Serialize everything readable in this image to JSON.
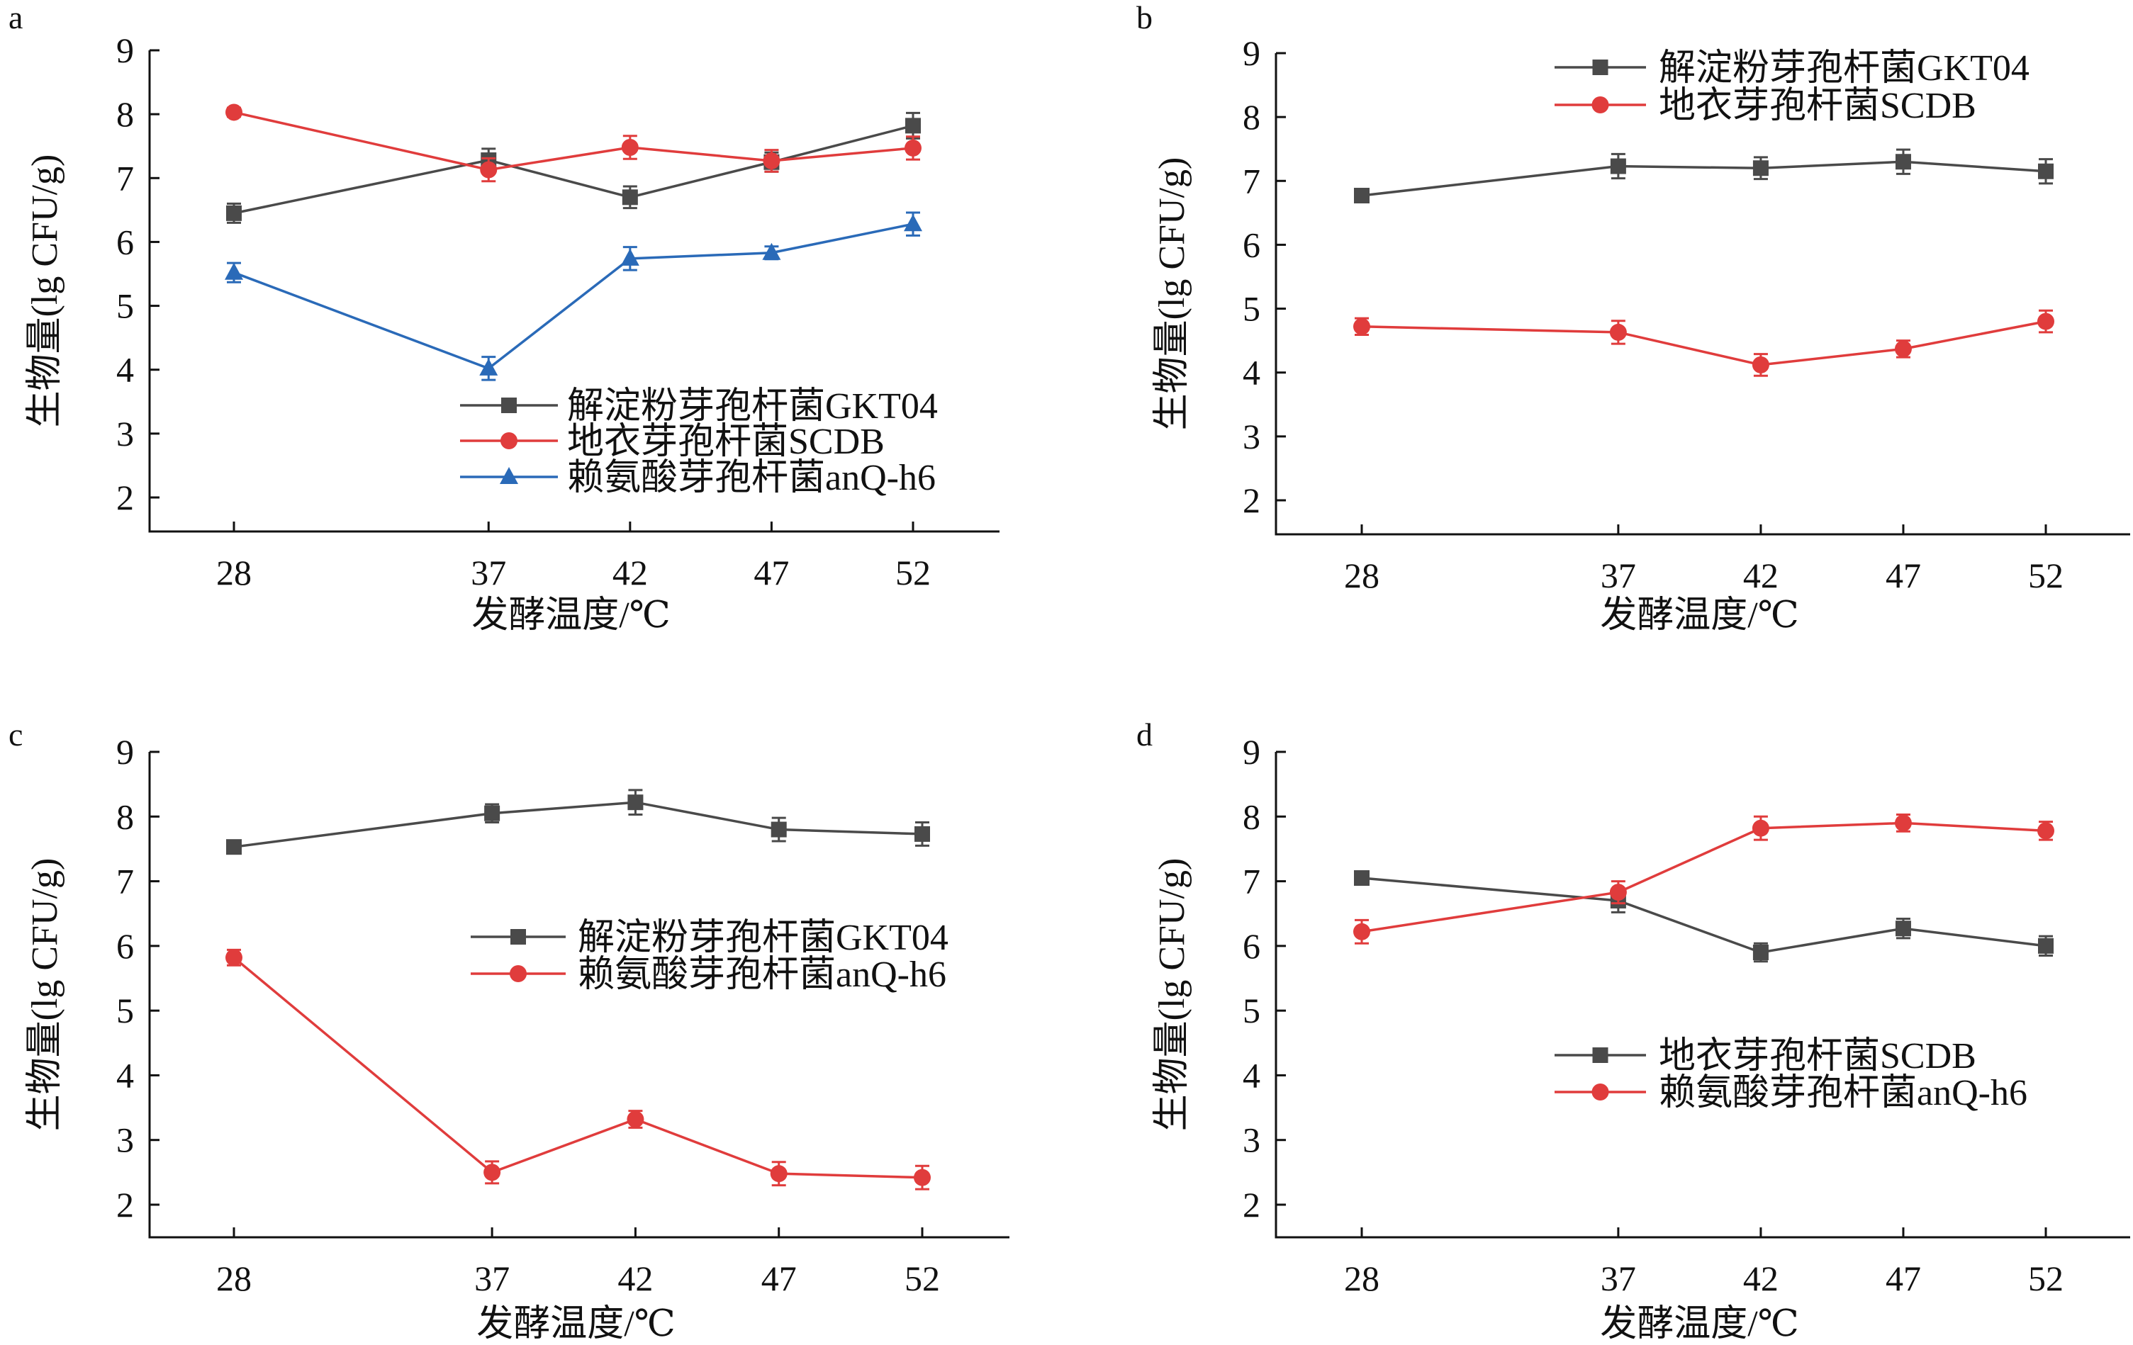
{
  "colors": {
    "gray": "#4a4a4a",
    "red": "#e03c3c",
    "blue": "#2a6ab8",
    "axis": "#111111"
  },
  "chart_data": [
    {
      "panel": "a",
      "type": "line",
      "xlabel": "发酵温度/℃",
      "ylabel": "生物量(lg CFU/g)",
      "x": [
        28,
        37,
        42,
        47,
        52
      ],
      "xlim": [
        25,
        55
      ],
      "ylim": [
        1.5,
        9
      ],
      "yticks": [
        2,
        3,
        4,
        5,
        6,
        7,
        8,
        9
      ],
      "grid": false,
      "legend": "bottom-right",
      "series": [
        {
          "name": "解淀粉芽孢杆菌GKT04",
          "color": "gray",
          "marker": "square",
          "values": [
            6.45,
            7.28,
            6.7,
            7.25,
            7.82
          ],
          "errors": [
            0.15,
            0.18,
            0.17,
            0.15,
            0.2
          ]
        },
        {
          "name": "地衣芽孢杆菌SCDB",
          "color": "red",
          "marker": "circle",
          "values": [
            8.03,
            7.13,
            7.48,
            7.27,
            7.47
          ],
          "errors": [
            0.07,
            0.18,
            0.18,
            0.17,
            0.18
          ]
        },
        {
          "name": "赖氨酸芽孢杆菌anQ-h6",
          "color": "blue",
          "marker": "triangle",
          "values": [
            5.52,
            4.02,
            5.74,
            5.83,
            6.28
          ],
          "errors": [
            0.15,
            0.18,
            0.18,
            0.1,
            0.18
          ]
        }
      ]
    },
    {
      "panel": "b",
      "type": "line",
      "xlabel": "发酵温度/℃",
      "ylabel": "生物量(lg CFU/g)",
      "x": [
        28,
        37,
        42,
        47,
        52
      ],
      "xlim": [
        25,
        55
      ],
      "ylim": [
        1.5,
        9
      ],
      "yticks": [
        2,
        3,
        4,
        5,
        6,
        7,
        8,
        9
      ],
      "grid": false,
      "legend": "top-right",
      "series": [
        {
          "name": "解淀粉芽孢杆菌GKT04",
          "color": "gray",
          "marker": "square",
          "values": [
            6.77,
            7.23,
            7.2,
            7.3,
            7.15
          ],
          "errors": [
            0.1,
            0.19,
            0.17,
            0.19,
            0.19
          ]
        },
        {
          "name": "地衣芽孢杆菌SCDB",
          "color": "red",
          "marker": "circle",
          "values": [
            4.72,
            4.63,
            4.12,
            4.37,
            4.8
          ],
          "errors": [
            0.13,
            0.18,
            0.17,
            0.13,
            0.17
          ]
        }
      ]
    },
    {
      "panel": "c",
      "type": "line",
      "xlabel": "发酵温度/℃",
      "ylabel": "生物量(lg CFU/g)",
      "x": [
        28,
        37,
        42,
        47,
        52
      ],
      "xlim": [
        25,
        55
      ],
      "ylim": [
        1.5,
        9
      ],
      "yticks": [
        2,
        3,
        4,
        5,
        6,
        7,
        8,
        9
      ],
      "grid": false,
      "legend": "center-right",
      "series": [
        {
          "name": "解淀粉芽孢杆菌GKT04",
          "color": "gray",
          "marker": "square",
          "values": [
            7.53,
            8.05,
            8.22,
            7.8,
            7.73
          ],
          "errors": [
            0.1,
            0.14,
            0.19,
            0.18,
            0.18
          ]
        },
        {
          "name": "赖氨酸芽孢杆菌anQ-h6",
          "color": "red",
          "marker": "circle",
          "values": [
            5.82,
            2.5,
            3.32,
            2.48,
            2.42
          ],
          "errors": [
            0.12,
            0.17,
            0.13,
            0.18,
            0.18
          ]
        }
      ]
    },
    {
      "panel": "d",
      "type": "line",
      "xlabel": "发酵温度/℃",
      "ylabel": "生物量(lg CFU/g)",
      "x": [
        28,
        37,
        42,
        47,
        52
      ],
      "xlim": [
        25,
        55
      ],
      "ylim": [
        1.5,
        9
      ],
      "yticks": [
        2,
        3,
        4,
        5,
        6,
        7,
        8,
        9
      ],
      "grid": false,
      "legend": "bottom-right",
      "series": [
        {
          "name": "地衣芽孢杆菌SCDB",
          "color": "gray",
          "marker": "square",
          "values": [
            7.05,
            6.7,
            5.9,
            6.27,
            6.0
          ],
          "errors": [
            0.1,
            0.18,
            0.14,
            0.15,
            0.15
          ]
        },
        {
          "name": "赖氨酸芽孢杆菌anQ-h6",
          "color": "red",
          "marker": "circle",
          "values": [
            6.22,
            6.83,
            7.82,
            7.9,
            7.78
          ],
          "errors": [
            0.18,
            0.17,
            0.18,
            0.13,
            0.14
          ]
        }
      ]
    }
  ]
}
